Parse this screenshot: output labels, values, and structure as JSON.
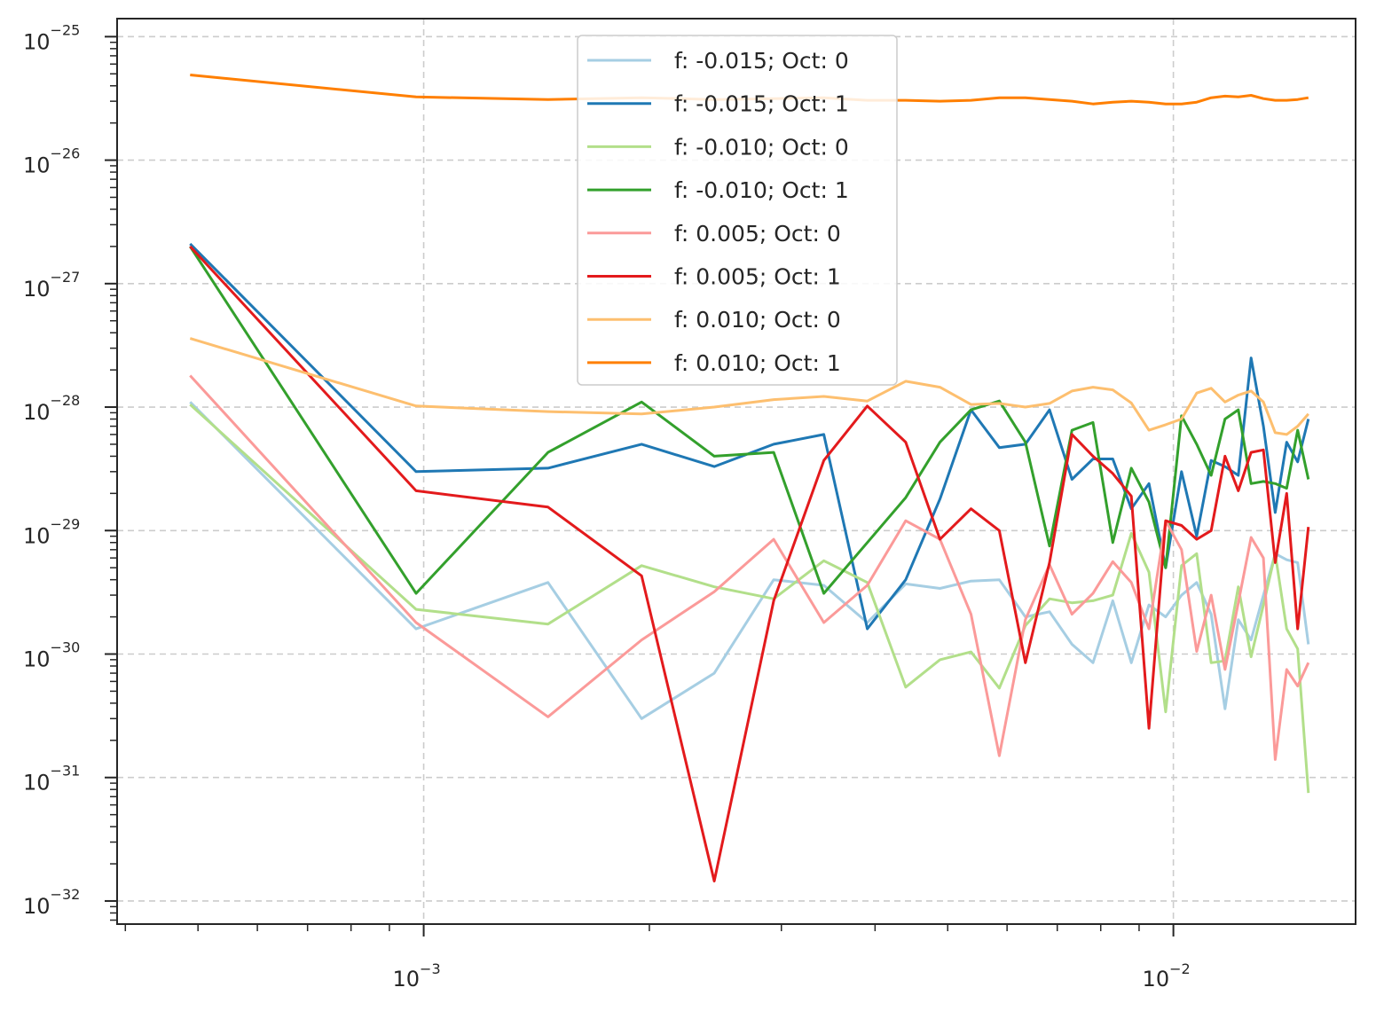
{
  "chart_data": {
    "type": "line",
    "title": "",
    "xlabel": "",
    "ylabel": "",
    "x_scale": "log",
    "y_scale": "log",
    "xlim": [
      0.00039,
      0.0175
    ],
    "ylim": [
      6.5e-33,
      1.4e-25
    ],
    "grid": true,
    "legend_position": "upper center",
    "x_ticks": [
      {
        "value": 0.001,
        "base": "10",
        "exp": "−3"
      },
      {
        "value": 0.01,
        "base": "10",
        "exp": "−2"
      }
    ],
    "y_ticks": [
      {
        "value": 1e-25,
        "base": "10",
        "exp": "−25"
      },
      {
        "value": 1e-26,
        "base": "10",
        "exp": "−26"
      },
      {
        "value": 1e-27,
        "base": "10",
        "exp": "−27"
      },
      {
        "value": 1e-28,
        "base": "10",
        "exp": "−28"
      },
      {
        "value": 1e-29,
        "base": "10",
        "exp": "−29"
      },
      {
        "value": 1e-30,
        "base": "10",
        "exp": "−30"
      },
      {
        "value": 1e-31,
        "base": "10",
        "exp": "−31"
      },
      {
        "value": 1e-32,
        "base": "10",
        "exp": "−32"
      }
    ],
    "x": [
      0.000488,
      0.000977,
      0.001465,
      0.001953,
      0.002441,
      0.00293,
      0.003418,
      0.003906,
      0.004395,
      0.004883,
      0.005371,
      0.005859,
      0.006348,
      0.006836,
      0.007324,
      0.007813,
      0.008301,
      0.008789,
      0.009277,
      0.009766,
      0.010254,
      0.010742,
      0.01123,
      0.011719,
      0.012207,
      0.012695,
      0.013184,
      0.013672,
      0.01416,
      0.014648,
      0.015137
    ],
    "series": [
      {
        "name": "f: -0.015; Oct: 0",
        "color": "#a6cee3",
        "values": [
          1.1e-28,
          1.6e-30,
          3.8e-30,
          3e-31,
          7e-31,
          4e-30,
          3.6e-30,
          1.8e-30,
          3.7e-30,
          3.4e-30,
          3.9e-30,
          4e-30,
          2e-30,
          2.2e-30,
          1.2e-30,
          8.5e-31,
          2.7e-30,
          8.5e-31,
          2.5e-30,
          2e-30,
          3e-30,
          3.8e-30,
          2.1e-30,
          3.6e-31,
          1.9e-30,
          1.3e-30,
          3e-30,
          6.5e-30,
          5.8e-30,
          5.5e-30,
          1.2e-30
        ]
      },
      {
        "name": "f: -0.015; Oct: 1",
        "color": "#1f78b4",
        "values": [
          2.1e-27,
          3e-29,
          3.2e-29,
          5e-29,
          3.3e-29,
          5e-29,
          6e-29,
          1.6e-30,
          4e-30,
          1.8e-29,
          9.5e-29,
          4.7e-29,
          5e-29,
          9.5e-29,
          2.6e-29,
          3.8e-29,
          3.8e-29,
          1.5e-29,
          2.4e-29,
          5e-30,
          3e-29,
          9e-30,
          3.7e-29,
          3.3e-29,
          2.8e-29,
          2.5e-28,
          7e-29,
          1.4e-29,
          5.2e-29,
          3.6e-29,
          8e-29
        ]
      },
      {
        "name": "f: -0.010; Oct: 0",
        "color": "#b2df8a",
        "values": [
          1.05e-28,
          2.3e-30,
          1.75e-30,
          5.2e-30,
          3.5e-30,
          2.8e-30,
          5.7e-30,
          3.8e-30,
          5.4e-31,
          9e-31,
          1.04e-30,
          5.3e-31,
          1.7e-30,
          2.8e-30,
          2.6e-30,
          2.7e-30,
          3e-30,
          9.5e-30,
          4.6e-30,
          3.4e-31,
          5.2e-30,
          6.5e-30,
          8.5e-31,
          8.8e-31,
          3.5e-30,
          9.5e-31,
          2.5e-30,
          6.5e-30,
          1.6e-30,
          1.1e-30,
          7.5e-32
        ]
      },
      {
        "name": "f: -0.010; Oct: 1",
        "color": "#33a02c",
        "values": [
          2e-27,
          3.1e-30,
          4.3e-29,
          1.1e-28,
          4e-29,
          4.3e-29,
          3.1e-30,
          8e-30,
          1.85e-29,
          5.2e-29,
          9.5e-29,
          1.12e-28,
          5.2e-29,
          7.5e-30,
          6.5e-29,
          7.5e-29,
          8e-30,
          3.2e-29,
          1.7e-29,
          5e-30,
          8.5e-29,
          5e-29,
          2.8e-29,
          8e-29,
          9.5e-29,
          2.4e-29,
          2.5e-29,
          2.4e-29,
          2.2e-29,
          6.5e-29,
          2.6e-29
        ]
      },
      {
        "name": "f: 0.005; Oct: 0",
        "color": "#fb9a99",
        "values": [
          1.8e-28,
          1.8e-30,
          3.1e-31,
          1.3e-30,
          3.2e-30,
          8.5e-30,
          1.8e-30,
          3.6e-30,
          1.2e-29,
          8.5e-30,
          2.1e-30,
          1.5e-31,
          1.9e-30,
          5.3e-30,
          2.1e-30,
          3.1e-30,
          5.6e-30,
          3.8e-30,
          1.6e-30,
          1.2e-29,
          7e-30,
          1.05e-30,
          3e-30,
          7.5e-31,
          2.6e-30,
          8.8e-30,
          6e-30,
          1.4e-31,
          7.5e-31,
          5.5e-31,
          8.5e-31
        ]
      },
      {
        "name": "f: 0.005; Oct: 1",
        "color": "#e31a1c",
        "values": [
          2e-27,
          2.1e-29,
          1.55e-29,
          4.3e-30,
          1.45e-32,
          2.7e-30,
          3.7e-29,
          1.02e-28,
          5.2e-29,
          8.5e-30,
          1.5e-29,
          1e-29,
          8.5e-31,
          5.5e-30,
          6e-29,
          4e-29,
          2.9e-29,
          1.9e-29,
          2.5e-31,
          1.2e-29,
          1.1e-29,
          8.5e-30,
          1e-29,
          4e-29,
          2.1e-29,
          4.3e-29,
          4.5e-29,
          5.5e-30,
          2e-29,
          1.6e-30,
          1.07e-29
        ]
      },
      {
        "name": "f: 0.010; Oct: 0",
        "color": "#fdbf6f",
        "values": [
          3.6e-28,
          1.02e-28,
          9.2e-29,
          8.8e-29,
          1e-28,
          1.15e-28,
          1.22e-28,
          1.12e-28,
          1.62e-28,
          1.45e-28,
          1.05e-28,
          1.07e-28,
          1e-28,
          1.07e-28,
          1.35e-28,
          1.45e-28,
          1.38e-28,
          1.08e-28,
          6.5e-29,
          7.2e-29,
          8e-29,
          1.3e-28,
          1.42e-28,
          1.1e-28,
          1.25e-28,
          1.35e-28,
          1.1e-28,
          6.2e-29,
          6e-29,
          7e-29,
          8.8e-29
        ]
      },
      {
        "name": "f: 0.010; Oct: 1",
        "color": "#ff7f00",
        "values": [
          4.9e-26,
          3.25e-26,
          3.1e-26,
          3.2e-26,
          3.1e-26,
          3.15e-26,
          3.2e-26,
          3.05e-26,
          3.05e-26,
          3e-26,
          3.05e-26,
          3.2e-26,
          3.2e-26,
          3.1e-26,
          3e-26,
          2.85e-26,
          2.95e-26,
          3e-26,
          2.95e-26,
          2.85e-26,
          2.85e-26,
          2.95e-26,
          3.2e-26,
          3.3e-26,
          3.25e-26,
          3.35e-26,
          3.15e-26,
          3.05e-26,
          3.05e-26,
          3.1e-26,
          3.2e-26
        ]
      }
    ]
  }
}
